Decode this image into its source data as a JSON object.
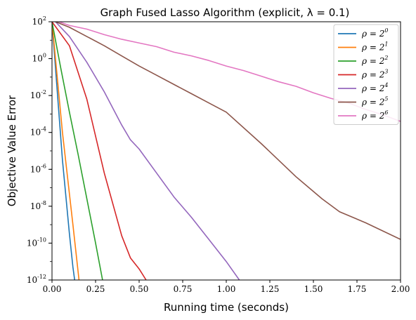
{
  "chart_data": {
    "type": "line",
    "title": "Graph Fused Lasso Algorithm (explicit, λ = 0.1)",
    "xlabel": "Running time (seconds)",
    "ylabel": "Objective Value Error",
    "xlim": [
      0,
      2
    ],
    "ylim_log10": [
      -12,
      2
    ],
    "yscale": "log",
    "grid": false,
    "legend_position": "top-right",
    "x_ticks": [
      "0.00",
      "0.25",
      "0.50",
      "0.75",
      "1.00",
      "1.25",
      "1.50",
      "1.75",
      "2.00"
    ],
    "x_tick_values": [
      0,
      0.25,
      0.5,
      0.75,
      1.0,
      1.25,
      1.5,
      1.75,
      2.0
    ],
    "y_tick_exponents": [
      2,
      0,
      -2,
      -4,
      -6,
      -8,
      -10,
      -12
    ],
    "series": [
      {
        "name": "ρ = 2^0",
        "base": "ρ = 2",
        "exp": "0",
        "color": "#1f77b4",
        "x": [
          0.0,
          0.02,
          0.04,
          0.06,
          0.08,
          0.1,
          0.12,
          0.13
        ],
        "log10_y": [
          2,
          -0.5,
          -3,
          -5.5,
          -7.5,
          -9.5,
          -11.3,
          -12
        ]
      },
      {
        "name": "ρ = 2^1",
        "base": "ρ = 2",
        "exp": "1",
        "color": "#ff7f0e",
        "x": [
          0.0,
          0.03,
          0.06,
          0.09,
          0.12,
          0.155
        ],
        "log10_y": [
          2,
          -1,
          -4,
          -6.5,
          -9,
          -12
        ]
      },
      {
        "name": "ρ = 2^2",
        "base": "ρ = 2",
        "exp": "2",
        "color": "#2ca02c",
        "x": [
          0.0,
          0.05,
          0.1,
          0.15,
          0.2,
          0.25,
          0.29
        ],
        "log10_y": [
          2,
          -0.5,
          -2.9,
          -5.2,
          -7.6,
          -10,
          -12
        ]
      },
      {
        "name": "ρ = 2^3",
        "base": "ρ = 2",
        "exp": "3",
        "color": "#d62728",
        "x": [
          0.0,
          0.1,
          0.2,
          0.3,
          0.4,
          0.45,
          0.5,
          0.54
        ],
        "log10_y": [
          2,
          0.7,
          -2.2,
          -6.2,
          -9.6,
          -10.8,
          -11.4,
          -12
        ]
      },
      {
        "name": "ρ = 2^4",
        "base": "ρ = 2",
        "exp": "4",
        "color": "#9467bd",
        "x": [
          0.02,
          0.1,
          0.2,
          0.3,
          0.4,
          0.45,
          0.5,
          0.6,
          0.7,
          0.8,
          0.9,
          1.0,
          1.075
        ],
        "log10_y": [
          2,
          1.2,
          -0.2,
          -1.8,
          -3.6,
          -4.4,
          -4.9,
          -6.2,
          -7.5,
          -8.6,
          -9.8,
          -11,
          -12
        ]
      },
      {
        "name": "ρ = 2^5",
        "base": "ρ = 2",
        "exp": "5",
        "color": "#8c564b",
        "x": [
          0.02,
          0.1,
          0.2,
          0.3,
          0.4,
          0.5,
          0.6,
          0.7,
          0.8,
          0.9,
          1.0,
          1.2,
          1.4,
          1.55,
          1.65,
          1.8,
          2.0
        ],
        "log10_y": [
          2,
          1.7,
          1.2,
          0.7,
          0.15,
          -0.4,
          -0.9,
          -1.4,
          -1.9,
          -2.4,
          -2.9,
          -4.6,
          -6.4,
          -7.6,
          -8.3,
          -8.9,
          -9.8
        ]
      },
      {
        "name": "ρ = 2^6",
        "base": "ρ = 2",
        "exp": "6",
        "color": "#e377c2",
        "x": [
          0.04,
          0.1,
          0.2,
          0.3,
          0.4,
          0.5,
          0.6,
          0.7,
          0.8,
          0.9,
          1.0,
          1.1,
          1.2,
          1.3,
          1.4,
          1.5,
          1.6,
          1.7,
          1.8,
          1.9,
          2.0
        ],
        "log10_y": [
          2,
          1.8,
          1.6,
          1.3,
          1.05,
          0.85,
          0.65,
          0.35,
          0.15,
          -0.1,
          -0.4,
          -0.65,
          -0.95,
          -1.25,
          -1.5,
          -1.85,
          -2.15,
          -2.4,
          -2.75,
          -3.05,
          -3.4
        ]
      }
    ]
  }
}
